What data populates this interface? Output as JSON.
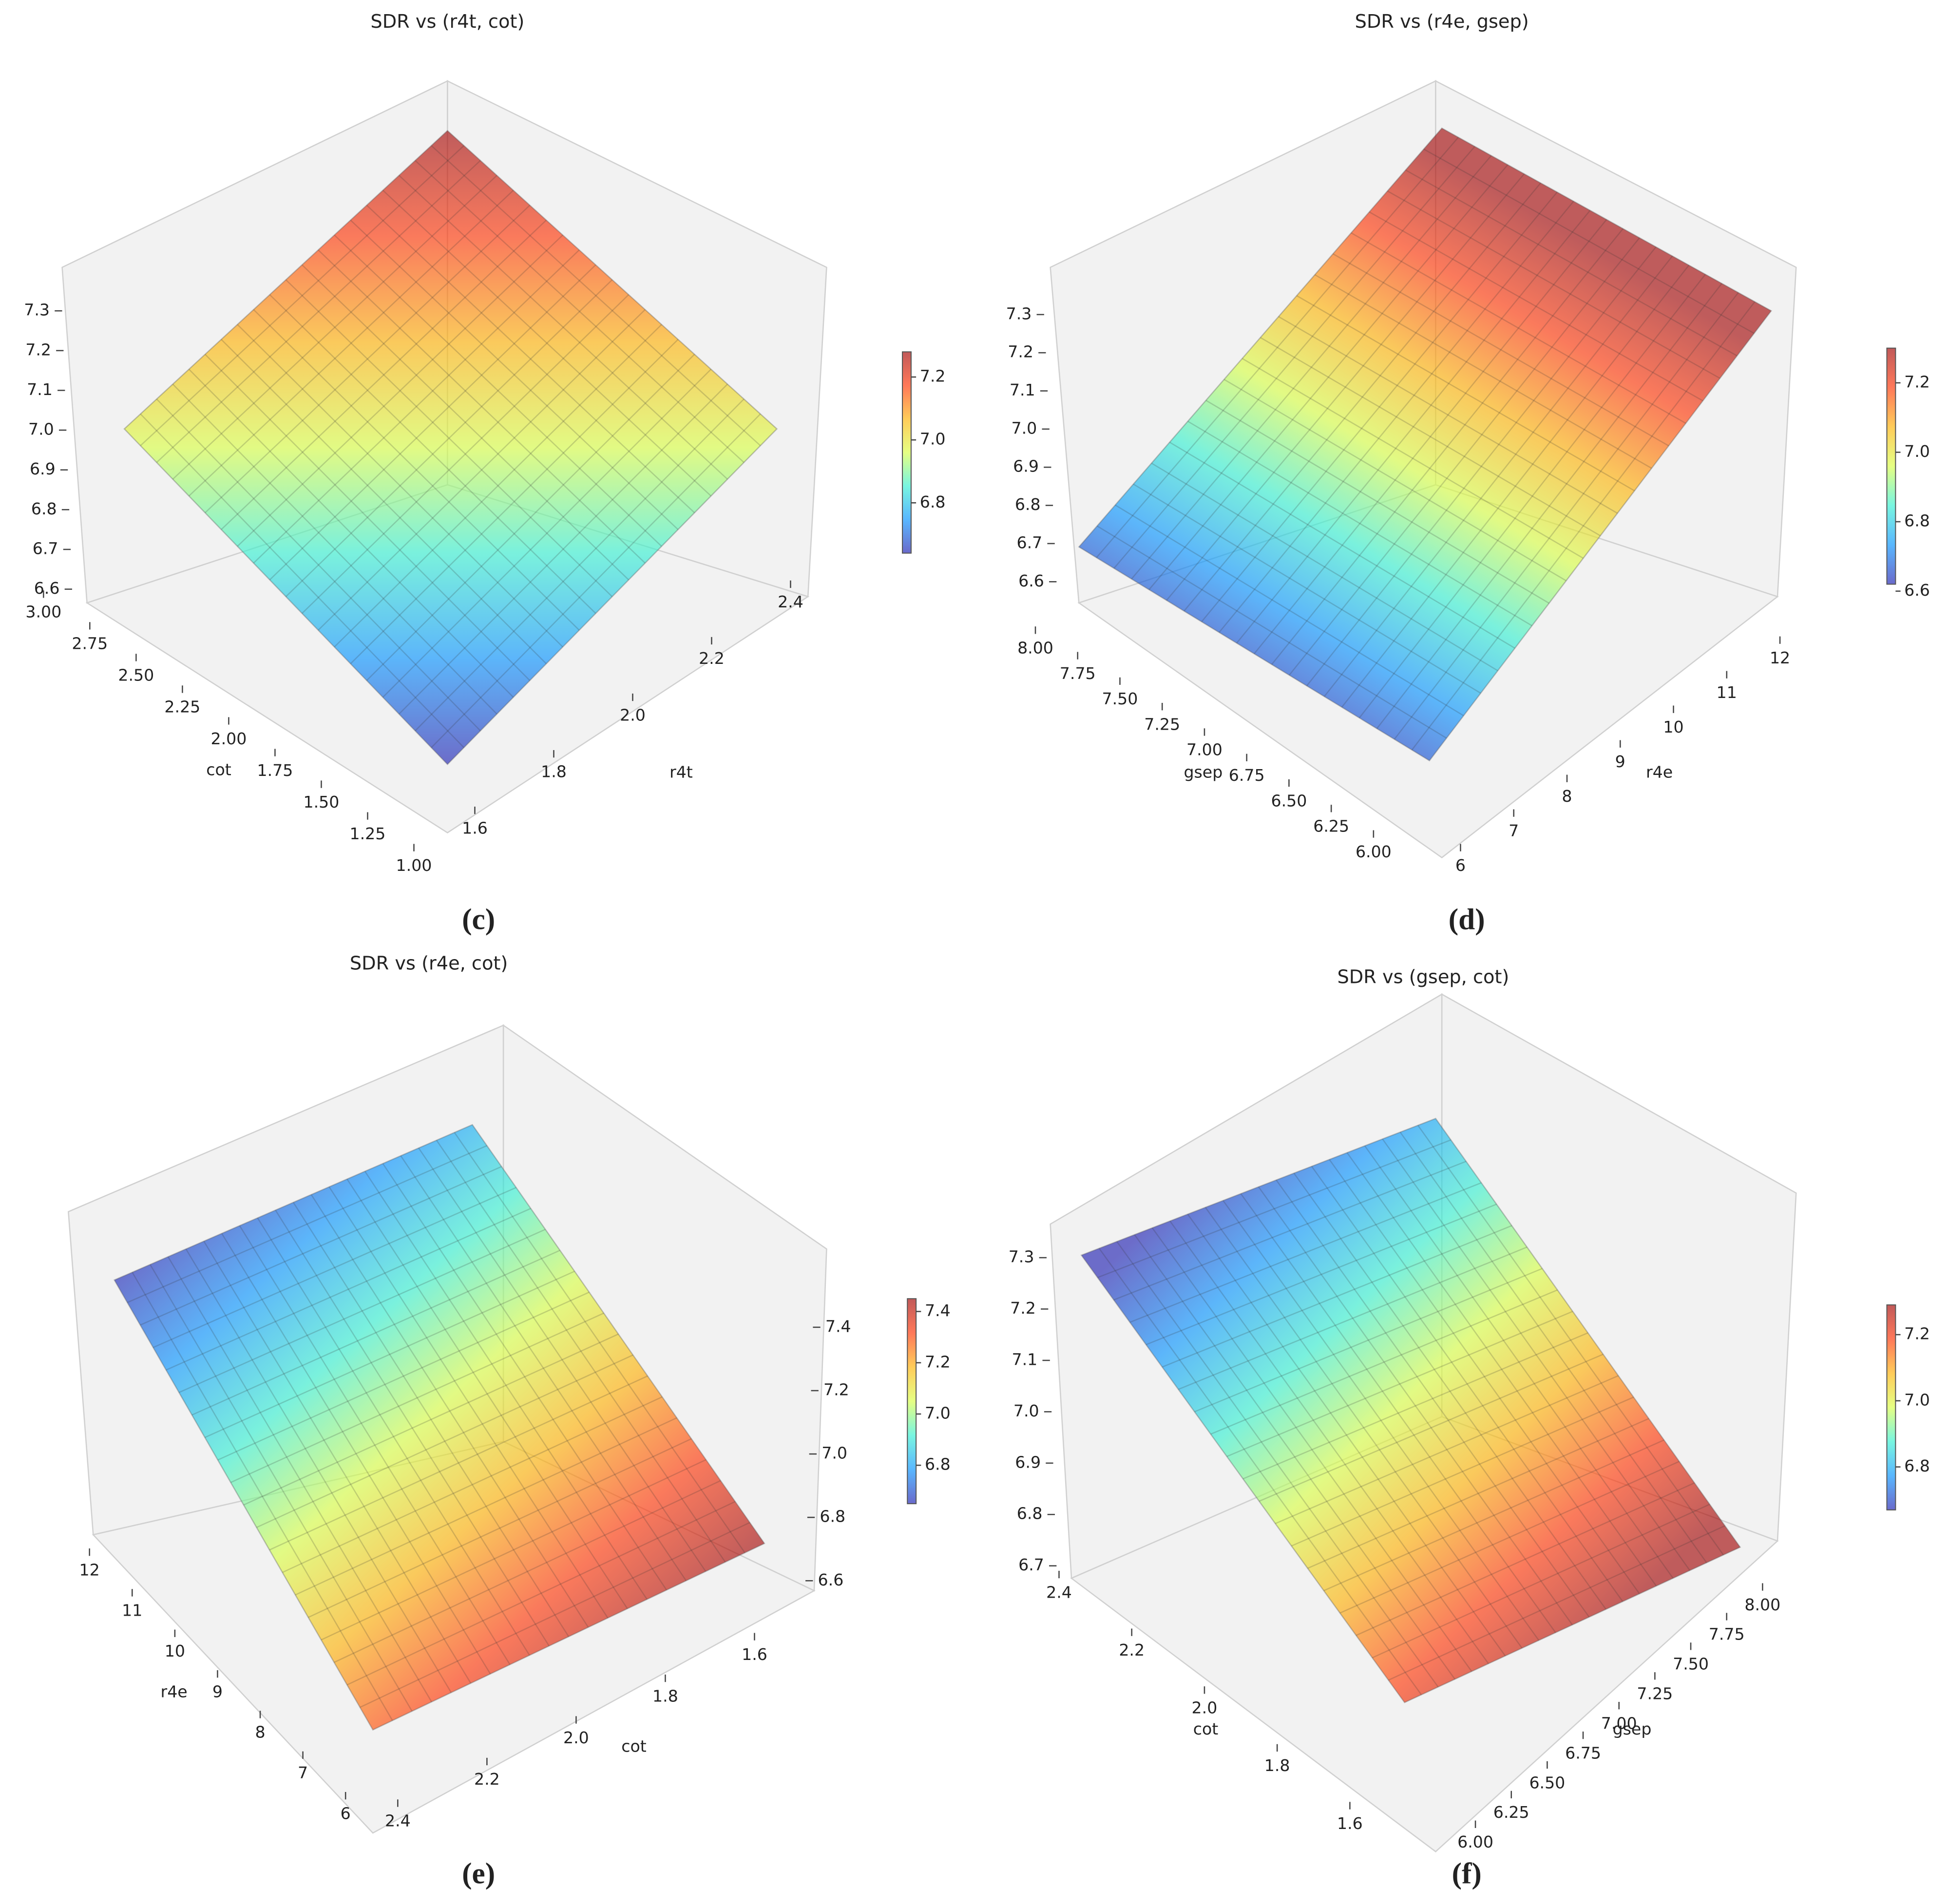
{
  "chart_data": [
    {
      "type": "surface",
      "title": "SDR vs (r4t, cot)",
      "panel_label": "(c)",
      "colormap": "jet",
      "xlabel": "r4t",
      "ylabel": "cot",
      "xlim": [
        1.6,
        2.4
      ],
      "xticks": [
        1.6,
        1.8,
        {
          "value": 2.0,
          "label": "2.0"
        },
        2.2,
        2.4
      ],
      "ylim": [
        1.0,
        3.0
      ],
      "yticks": [
        {
          "value": 1.0,
          "label": "1.00"
        },
        1.25,
        {
          "value": 1.5,
          "label": "1.50"
        },
        1.75,
        {
          "value": 2.0,
          "label": "2.00"
        },
        2.25,
        {
          "value": 2.5,
          "label": "2.50"
        },
        2.75,
        {
          "value": 3.0,
          "label": "3.00"
        }
      ],
      "zlim": [
        6.6,
        7.3
      ],
      "zticks": [
        6.6,
        6.7,
        6.8,
        6.9,
        {
          "value": 7.0,
          "label": "7.0"
        },
        7.1,
        7.2,
        7.3
      ],
      "clim": [
        6.64,
        7.28
      ],
      "cticks": [
        6.8,
        {
          "value": 7.0,
          "label": "7.0"
        },
        7.2
      ]
    },
    {
      "type": "surface",
      "title": "SDR vs (r4e, gsep)",
      "panel_label": "(d)",
      "colormap": "jet",
      "xlabel": "r4e",
      "ylabel": "gsep",
      "xlim": [
        6,
        12
      ],
      "xticks": [
        6,
        7,
        8,
        9,
        10,
        11,
        12
      ],
      "ylim": [
        6.0,
        8.0
      ],
      "yticks": [
        {
          "value": 6.0,
          "label": "6.00"
        },
        6.25,
        {
          "value": 6.5,
          "label": "6.50"
        },
        6.75,
        {
          "value": 7.0,
          "label": "7.00"
        },
        7.25,
        {
          "value": 7.5,
          "label": "7.50"
        },
        7.75,
        {
          "value": 8.0,
          "label": "8.00"
        }
      ],
      "zlim": [
        6.6,
        7.3
      ],
      "zticks": [
        6.6,
        6.7,
        6.8,
        6.9,
        {
          "value": 7.0,
          "label": "7.0"
        },
        7.1,
        7.2,
        7.3
      ],
      "clim": [
        6.62,
        7.3
      ],
      "cticks": [
        6.6,
        6.8,
        {
          "value": 7.0,
          "label": "7.0"
        },
        7.2
      ]
    },
    {
      "type": "surface",
      "title": "SDR vs (r4e, cot)",
      "panel_label": "(e)",
      "colormap": "jet",
      "xlabel": "cot",
      "ylabel": "r4e",
      "xlim": [
        1.6,
        2.4
      ],
      "xticks": [
        1.6,
        1.8,
        {
          "value": 2.0,
          "label": "2.0"
        },
        2.2,
        2.4
      ],
      "ylim": [
        6,
        12
      ],
      "yticks": [
        6,
        7,
        8,
        9,
        10,
        11,
        12
      ],
      "zlim": [
        6.6,
        7.4
      ],
      "zticks": [
        6.6,
        6.8,
        {
          "value": 7.0,
          "label": "7.0"
        },
        7.2,
        7.4
      ],
      "clim": [
        6.65,
        7.45
      ],
      "cticks": [
        6.8,
        {
          "value": 7.0,
          "label": "7.0"
        },
        7.2,
        7.4
      ]
    },
    {
      "type": "surface",
      "title": "SDR vs (gsep, cot)",
      "panel_label": "(f)",
      "colormap": "jet",
      "xlabel": "gsep",
      "ylabel": "cot",
      "xlim": [
        6.0,
        8.0
      ],
      "xticks": [
        {
          "value": 6.0,
          "label": "6.00"
        },
        6.25,
        {
          "value": 6.5,
          "label": "6.50"
        },
        6.75,
        {
          "value": 7.0,
          "label": "7.00"
        },
        7.25,
        {
          "value": 7.5,
          "label": "7.50"
        },
        7.75,
        {
          "value": 8.0,
          "label": "8.00"
        }
      ],
      "ylim": [
        1.6,
        2.4
      ],
      "yticks": [
        1.6,
        1.8,
        {
          "value": 2.0,
          "label": "2.0"
        },
        2.2,
        2.4
      ],
      "zlim": [
        6.7,
        7.3
      ],
      "zticks": [
        6.7,
        6.8,
        6.9,
        {
          "value": 7.0,
          "label": "7.0"
        },
        7.1,
        7.2,
        7.3
      ],
      "clim": [
        6.67,
        7.29
      ],
      "cticks": [
        6.8,
        {
          "value": 7.0,
          "label": "7.0"
        },
        7.2
      ]
    }
  ]
}
